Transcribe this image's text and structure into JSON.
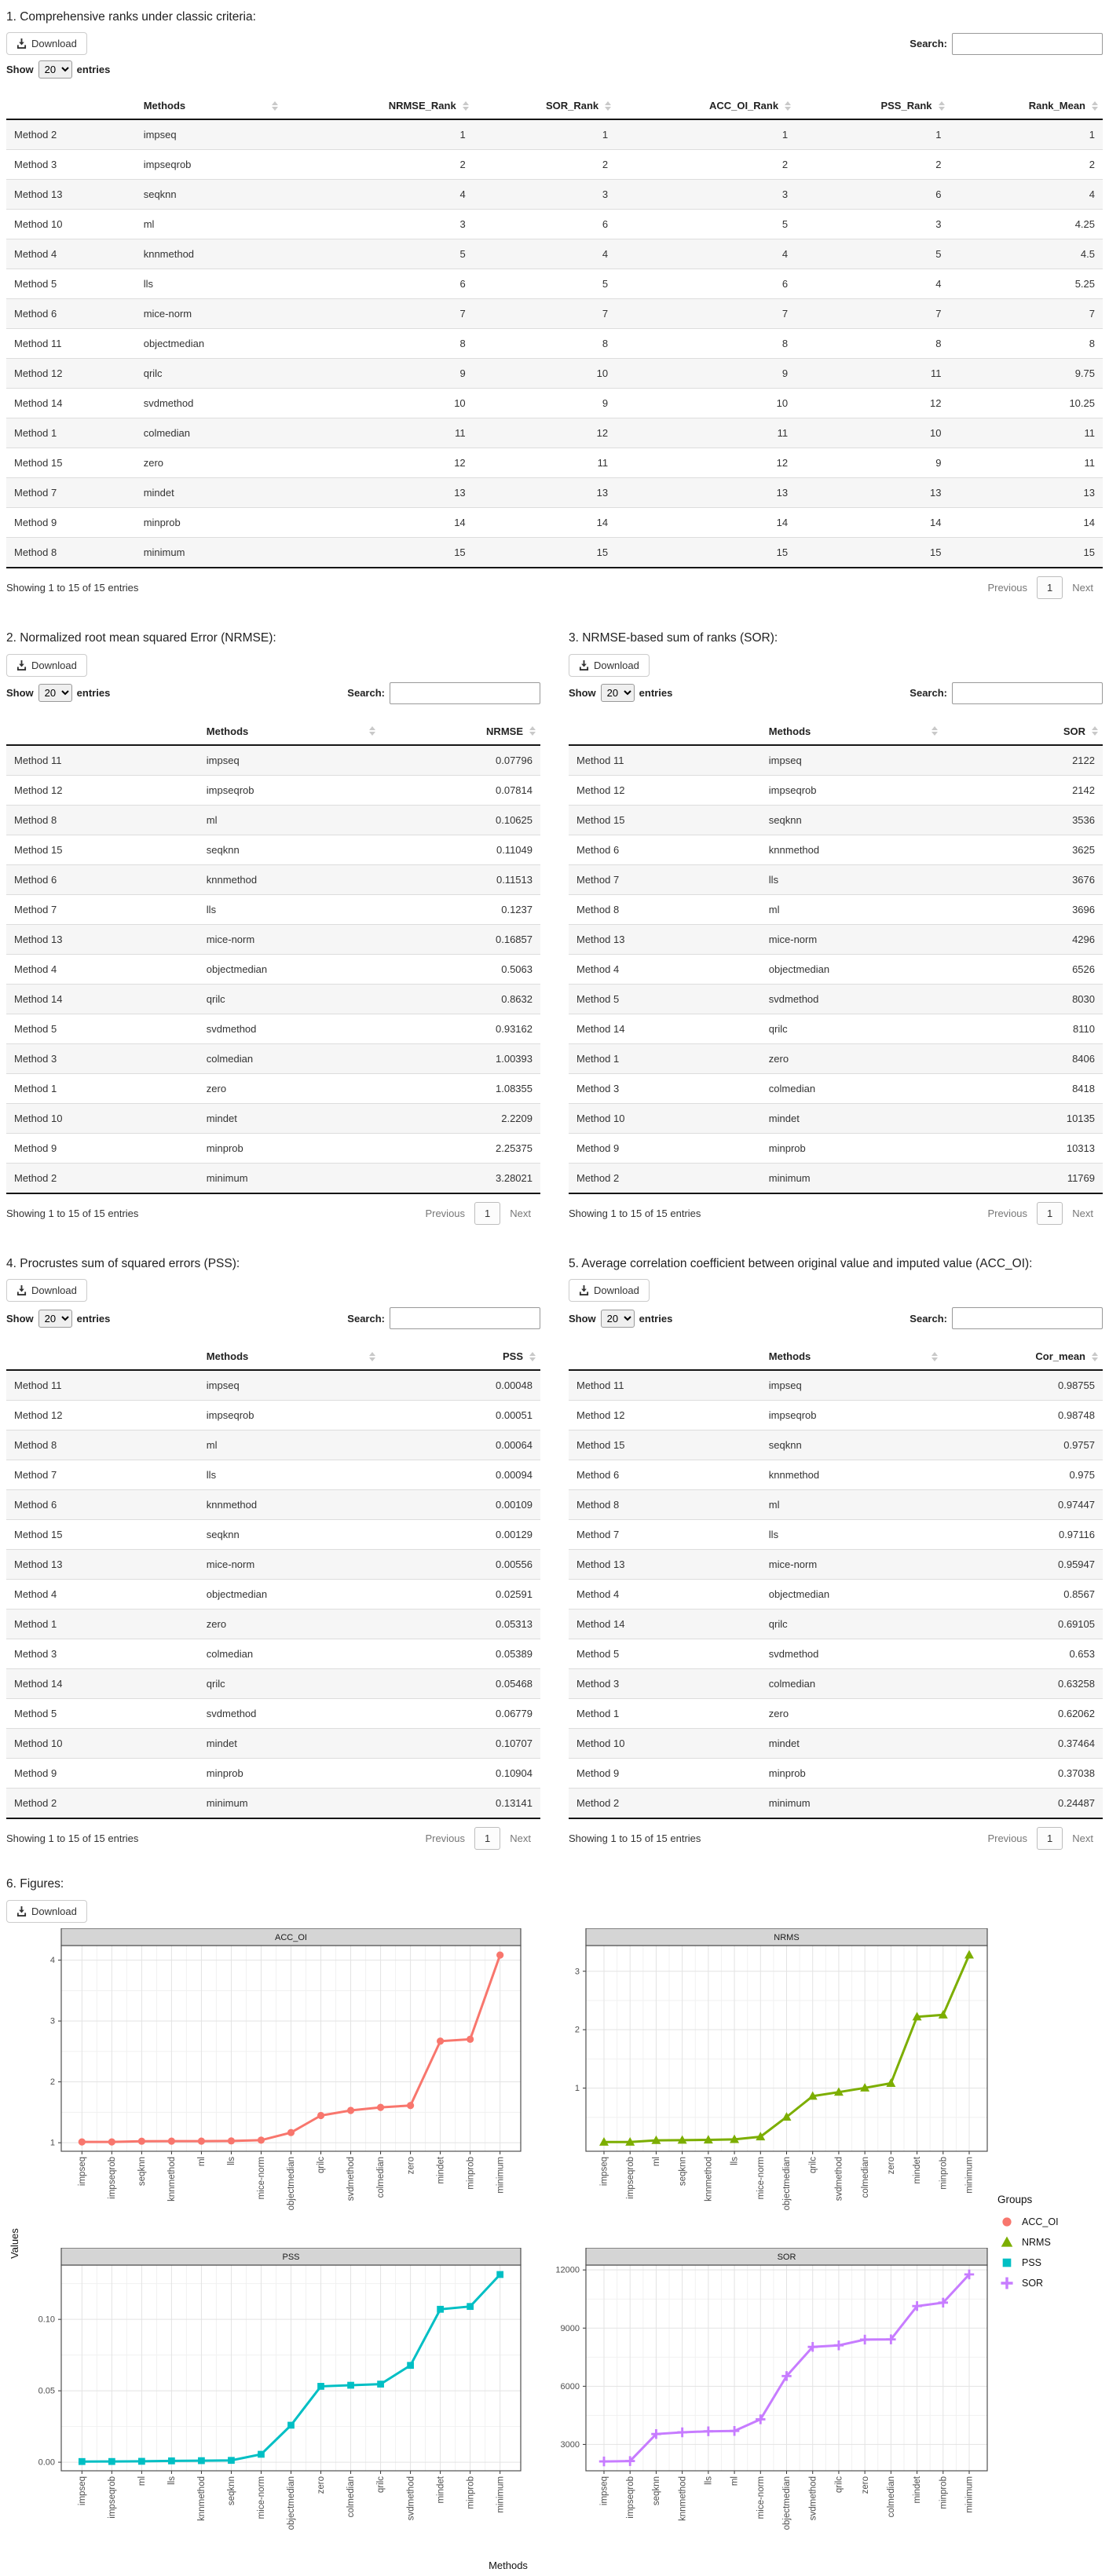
{
  "controls": {
    "download_label": "Download",
    "show_label": "Show",
    "entries_label": "entries",
    "page_size": "20",
    "search_label": "Search:",
    "search_value": "",
    "showing_text": "Showing 1 to 15 of 15 entries",
    "previous_label": "Previous",
    "page_number": "1",
    "next_label": "Next"
  },
  "tables": [
    {
      "title": "1. Comprehensive ranks under classic criteria:",
      "columns": [
        "",
        "Methods",
        "NRMSE_Rank",
        "SOR_Rank",
        "ACC_OI_Rank",
        "PSS_Rank",
        "Rank_Mean"
      ],
      "rows": [
        [
          "Method 2",
          "impseq",
          "1",
          "1",
          "1",
          "1",
          "1"
        ],
        [
          "Method 3",
          "impseqrob",
          "2",
          "2",
          "2",
          "2",
          "2"
        ],
        [
          "Method 13",
          "seqknn",
          "4",
          "3",
          "3",
          "6",
          "4"
        ],
        [
          "Method 10",
          "ml",
          "3",
          "6",
          "5",
          "3",
          "4.25"
        ],
        [
          "Method 4",
          "knnmethod",
          "5",
          "4",
          "4",
          "5",
          "4.5"
        ],
        [
          "Method 5",
          "lls",
          "6",
          "5",
          "6",
          "4",
          "5.25"
        ],
        [
          "Method 6",
          "mice-norm",
          "7",
          "7",
          "7",
          "7",
          "7"
        ],
        [
          "Method 11",
          "objectmedian",
          "8",
          "8",
          "8",
          "8",
          "8"
        ],
        [
          "Method 12",
          "qrilc",
          "9",
          "10",
          "9",
          "11",
          "9.75"
        ],
        [
          "Method 14",
          "svdmethod",
          "10",
          "9",
          "10",
          "12",
          "10.25"
        ],
        [
          "Method 1",
          "colmedian",
          "11",
          "12",
          "11",
          "10",
          "11"
        ],
        [
          "Method 15",
          "zero",
          "12",
          "11",
          "12",
          "9",
          "11"
        ],
        [
          "Method 7",
          "mindet",
          "13",
          "13",
          "13",
          "13",
          "13"
        ],
        [
          "Method 9",
          "minprob",
          "14",
          "14",
          "14",
          "14",
          "14"
        ],
        [
          "Method 8",
          "minimum",
          "15",
          "15",
          "15",
          "15",
          "15"
        ]
      ]
    },
    {
      "title": "2. Normalized root mean squared Error (NRMSE):",
      "columns": [
        "",
        "Methods",
        "NRMSE"
      ],
      "rows": [
        [
          "Method 11",
          "impseq",
          "0.07796"
        ],
        [
          "Method 12",
          "impseqrob",
          "0.07814"
        ],
        [
          "Method 8",
          "ml",
          "0.10625"
        ],
        [
          "Method 15",
          "seqknn",
          "0.11049"
        ],
        [
          "Method 6",
          "knnmethod",
          "0.11513"
        ],
        [
          "Method 7",
          "lls",
          "0.1237"
        ],
        [
          "Method 13",
          "mice-norm",
          "0.16857"
        ],
        [
          "Method 4",
          "objectmedian",
          "0.5063"
        ],
        [
          "Method 14",
          "qrilc",
          "0.8632"
        ],
        [
          "Method 5",
          "svdmethod",
          "0.93162"
        ],
        [
          "Method 3",
          "colmedian",
          "1.00393"
        ],
        [
          "Method 1",
          "zero",
          "1.08355"
        ],
        [
          "Method 10",
          "mindet",
          "2.2209"
        ],
        [
          "Method 9",
          "minprob",
          "2.25375"
        ],
        [
          "Method 2",
          "minimum",
          "3.28021"
        ]
      ]
    },
    {
      "title": "3. NRMSE-based sum of ranks (SOR):",
      "columns": [
        "",
        "Methods",
        "SOR"
      ],
      "rows": [
        [
          "Method 11",
          "impseq",
          "2122"
        ],
        [
          "Method 12",
          "impseqrob",
          "2142"
        ],
        [
          "Method 15",
          "seqknn",
          "3536"
        ],
        [
          "Method 6",
          "knnmethod",
          "3625"
        ],
        [
          "Method 7",
          "lls",
          "3676"
        ],
        [
          "Method 8",
          "ml",
          "3696"
        ],
        [
          "Method 13",
          "mice-norm",
          "4296"
        ],
        [
          "Method 4",
          "objectmedian",
          "6526"
        ],
        [
          "Method 5",
          "svdmethod",
          "8030"
        ],
        [
          "Method 14",
          "qrilc",
          "8110"
        ],
        [
          "Method 1",
          "zero",
          "8406"
        ],
        [
          "Method 3",
          "colmedian",
          "8418"
        ],
        [
          "Method 10",
          "mindet",
          "10135"
        ],
        [
          "Method 9",
          "minprob",
          "10313"
        ],
        [
          "Method 2",
          "minimum",
          "11769"
        ]
      ]
    },
    {
      "title": "4. Procrustes sum of squared errors (PSS):",
      "columns": [
        "",
        "Methods",
        "PSS"
      ],
      "rows": [
        [
          "Method 11",
          "impseq",
          "0.00048"
        ],
        [
          "Method 12",
          "impseqrob",
          "0.00051"
        ],
        [
          "Method 8",
          "ml",
          "0.00064"
        ],
        [
          "Method 7",
          "lls",
          "0.00094"
        ],
        [
          "Method 6",
          "knnmethod",
          "0.00109"
        ],
        [
          "Method 15",
          "seqknn",
          "0.00129"
        ],
        [
          "Method 13",
          "mice-norm",
          "0.00556"
        ],
        [
          "Method 4",
          "objectmedian",
          "0.02591"
        ],
        [
          "Method 1",
          "zero",
          "0.05313"
        ],
        [
          "Method 3",
          "colmedian",
          "0.05389"
        ],
        [
          "Method 14",
          "qrilc",
          "0.05468"
        ],
        [
          "Method 5",
          "svdmethod",
          "0.06779"
        ],
        [
          "Method 10",
          "mindet",
          "0.10707"
        ],
        [
          "Method 9",
          "minprob",
          "0.10904"
        ],
        [
          "Method 2",
          "minimum",
          "0.13141"
        ]
      ]
    },
    {
      "title": "5. Average correlation coefficient between original value and imputed value (ACC_OI):",
      "columns": [
        "",
        "Methods",
        "Cor_mean"
      ],
      "rows": [
        [
          "Method 11",
          "impseq",
          "0.98755"
        ],
        [
          "Method 12",
          "impseqrob",
          "0.98748"
        ],
        [
          "Method 15",
          "seqknn",
          "0.9757"
        ],
        [
          "Method 6",
          "knnmethod",
          "0.975"
        ],
        [
          "Method 8",
          "ml",
          "0.97447"
        ],
        [
          "Method 7",
          "lls",
          "0.97116"
        ],
        [
          "Method 13",
          "mice-norm",
          "0.95947"
        ],
        [
          "Method 4",
          "objectmedian",
          "0.8567"
        ],
        [
          "Method 14",
          "qrilc",
          "0.69105"
        ],
        [
          "Method 5",
          "svdmethod",
          "0.653"
        ],
        [
          "Method 3",
          "colmedian",
          "0.63258"
        ],
        [
          "Method 1",
          "zero",
          "0.62062"
        ],
        [
          "Method 10",
          "mindet",
          "0.37464"
        ],
        [
          "Method 9",
          "minprob",
          "0.37038"
        ],
        [
          "Method 2",
          "minimum",
          "0.24487"
        ]
      ]
    }
  ],
  "figures": {
    "title": "6. Figures:",
    "ylabel": "Values",
    "xlabel": "Methods",
    "legend": {
      "title": "Groups",
      "items": [
        {
          "label": "ACC_OI",
          "color": "#F8766D",
          "marker": "circle"
        },
        {
          "label": "NRMS",
          "color": "#7CAE00",
          "marker": "triangle"
        },
        {
          "label": "PSS",
          "color": "#00BFC4",
          "marker": "square"
        },
        {
          "label": "SOR",
          "color": "#C77CFF",
          "marker": "plus"
        }
      ]
    }
  },
  "chart_data": [
    {
      "type": "line",
      "title": "ACC_OI",
      "color": "#F8766D",
      "marker": "circle",
      "categories": [
        "impseq",
        "impseqrob",
        "seqknn",
        "knnmethod",
        "ml",
        "lls",
        "mice-norm",
        "objectmedian",
        "qrilc",
        "svdmethod",
        "colmedian",
        "zero",
        "mindet",
        "minprob",
        "minimum"
      ],
      "values": [
        1.013,
        1.013,
        1.025,
        1.026,
        1.026,
        1.03,
        1.042,
        1.167,
        1.447,
        1.531,
        1.581,
        1.611,
        2.669,
        2.7,
        4.084
      ],
      "yticks": [
        1,
        2,
        3,
        4
      ],
      "ytick_labels": [
        "1",
        "2",
        "3",
        "4"
      ],
      "ylim": [
        0.86,
        4.24
      ],
      "grid": true,
      "legend_position": "right"
    },
    {
      "type": "line",
      "title": "NRMS",
      "color": "#7CAE00",
      "marker": "triangle",
      "categories": [
        "impseq",
        "impseqrob",
        "ml",
        "seqknn",
        "knnmethod",
        "lls",
        "mice-norm",
        "objectmedian",
        "qrilc",
        "svdmethod",
        "colmedian",
        "zero",
        "mindet",
        "minprob",
        "minimum"
      ],
      "values": [
        0.07796,
        0.07814,
        0.10625,
        0.11049,
        0.11513,
        0.1237,
        0.16857,
        0.5063,
        0.8632,
        0.93162,
        1.00393,
        1.08355,
        2.2209,
        2.25375,
        3.28021
      ],
      "yticks": [
        1,
        2,
        3
      ],
      "ytick_labels": [
        "1",
        "2",
        "3"
      ],
      "ylim": [
        -0.08,
        3.44
      ],
      "grid": true,
      "legend_position": "right"
    },
    {
      "type": "line",
      "title": "PSS",
      "color": "#00BFC4",
      "marker": "square",
      "categories": [
        "impseq",
        "impseqrob",
        "ml",
        "lls",
        "knnmethod",
        "seqknn",
        "mice-norm",
        "objectmedian",
        "zero",
        "colmedian",
        "qrilc",
        "svdmethod",
        "mindet",
        "minprob",
        "minimum"
      ],
      "values": [
        0.00048,
        0.00051,
        0.00064,
        0.00094,
        0.00109,
        0.00129,
        0.00556,
        0.02591,
        0.05313,
        0.05389,
        0.05468,
        0.06779,
        0.10707,
        0.10904,
        0.13141
      ],
      "yticks": [
        0,
        0.05,
        0.1
      ],
      "ytick_labels": [
        "0.00",
        "0.05",
        "0.10"
      ],
      "ylim": [
        -0.006,
        0.138
      ],
      "grid": true,
      "legend_position": "right"
    },
    {
      "type": "line",
      "title": "SOR",
      "color": "#C77CFF",
      "marker": "plus",
      "categories": [
        "impseq",
        "impseqrob",
        "seqknn",
        "knnmethod",
        "lls",
        "ml",
        "mice-norm",
        "objectmedian",
        "svdmethod",
        "qrilc",
        "zero",
        "colmedian",
        "mindet",
        "minprob",
        "minimum"
      ],
      "values": [
        2122,
        2142,
        3536,
        3625,
        3676,
        3696,
        4296,
        6526,
        8030,
        8110,
        8406,
        8418,
        10135,
        10313,
        11769
      ],
      "yticks": [
        3000,
        6000,
        9000,
        12000
      ],
      "ytick_labels": [
        "3000",
        "6000",
        "9000",
        "12000"
      ],
      "ylim": [
        1640,
        12250
      ],
      "grid": true,
      "legend_position": "right"
    }
  ]
}
